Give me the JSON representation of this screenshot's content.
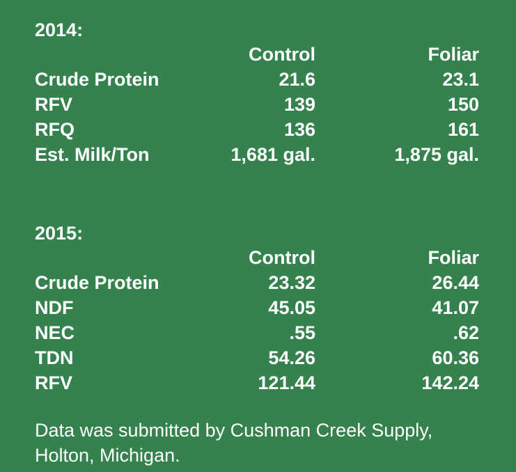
{
  "sections": [
    {
      "year": "2014:",
      "headers": {
        "label": "",
        "control": "Control",
        "foliar": "Foliar"
      },
      "rows": [
        {
          "label": "Crude Protein",
          "control": "21.6",
          "foliar": "23.1"
        },
        {
          "label": "RFV",
          "control": "139",
          "foliar": "150"
        },
        {
          "label": "RFQ",
          "control": "136",
          "foliar": "161"
        },
        {
          "label": "Est. Milk/Ton",
          "control": "1,681 gal.",
          "foliar": "1,875 gal."
        }
      ]
    },
    {
      "year": "2015:",
      "headers": {
        "label": "",
        "control": "Control",
        "foliar": "Foliar"
      },
      "rows": [
        {
          "label": "Crude Protein",
          "control": "23.32",
          "foliar": "26.44"
        },
        {
          "label": "NDF",
          "control": "45.05",
          "foliar": "41.07"
        },
        {
          "label": "NEC",
          "control": ".55",
          "foliar": ".62"
        },
        {
          "label": "TDN",
          "control": "54.26",
          "foliar": "60.36"
        },
        {
          "label": "RFV",
          "control": "121.44",
          "foliar": "142.24"
        }
      ]
    }
  ],
  "note": {
    "line1": "Data was submitted by Cushman Creek Supply,",
    "line2": "Holton, Michigan."
  },
  "colors": {
    "background": "#35824f",
    "text": "#ffffff"
  }
}
